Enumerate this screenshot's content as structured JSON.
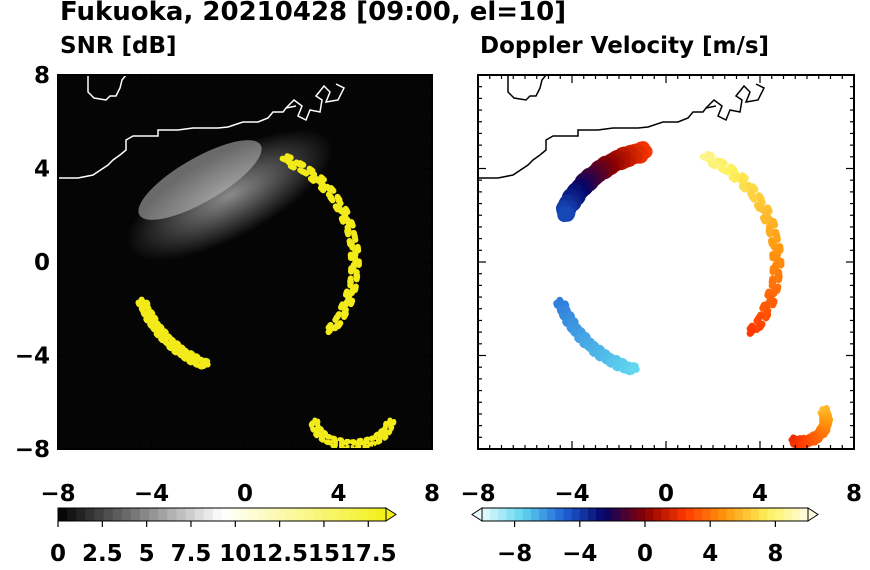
{
  "title": "Fukuoka, 20210428 [09:00, el=10]",
  "panels": [
    {
      "title": "SNR [dB]",
      "background": "#050505",
      "coastline": "#ffffff"
    },
    {
      "title": "Doppler Velocity [m/s]",
      "background": "#ffffff",
      "coastline": "#000000"
    }
  ],
  "chart_data": [
    {
      "type": "heatmap",
      "title": "SNR [dB]",
      "x_ticks": [
        -8,
        -4,
        0,
        4,
        8
      ],
      "y_ticks": [
        8,
        4,
        0,
        -4,
        -8
      ],
      "xlim": [
        -8,
        8
      ],
      "ylim": [
        -8,
        8
      ],
      "colorbar": {
        "ticks": [
          "0",
          "2.5",
          "5",
          "7.5",
          "10",
          "12.5",
          "15",
          "17.5"
        ],
        "range": [
          0,
          18.5
        ],
        "colors": [
          "#000000",
          "#ffffff",
          "#f3f01a"
        ]
      }
    },
    {
      "type": "heatmap",
      "title": "Doppler Velocity [m/s]",
      "x_ticks": [
        -8,
        -4,
        0,
        4,
        8
      ],
      "y_ticks": [
        8,
        4,
        0,
        -4,
        -8
      ],
      "xlim": [
        -8,
        8
      ],
      "ylim": [
        -8,
        8
      ],
      "colorbar": {
        "ticks": [
          "−8",
          "−4",
          "0",
          "4",
          "8"
        ],
        "range": [
          -10,
          10
        ],
        "colors": [
          "#e9fbfd",
          "#60d5ee",
          "#1f62d6",
          "#040467",
          "#8c0000",
          "#ff3a00",
          "#ff9a10",
          "#fdf05a",
          "#fffde1"
        ]
      }
    }
  ]
}
